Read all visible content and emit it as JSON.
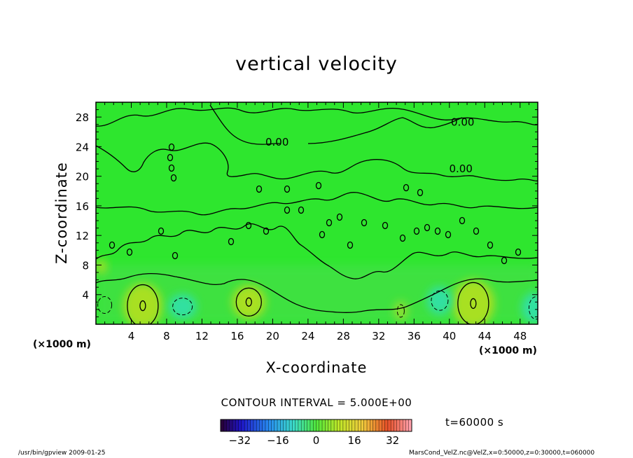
{
  "chart_data": {
    "type": "heatmap",
    "title": "vertical velocity",
    "xlabel": "X-coordinate",
    "ylabel": "Z-coordinate",
    "x_unit": "(×1000 m)",
    "y_unit": "(×1000 m)",
    "xlim": [
      0,
      50
    ],
    "ylim": [
      0,
      30
    ],
    "x_ticks": [
      4,
      8,
      12,
      16,
      20,
      24,
      28,
      32,
      36,
      40,
      44,
      48
    ],
    "y_ticks": [
      4,
      8,
      12,
      16,
      20,
      24,
      28
    ],
    "contour_labels": [
      {
        "text": "0.00",
        "x": 20.5,
        "y": 24.6
      },
      {
        "text": "0.00",
        "x": 41.5,
        "y": 27.3
      },
      {
        "text": "0.00",
        "x": 41.3,
        "y": 21.0
      }
    ],
    "local_maxima": [
      {
        "x": 5.3,
        "y": 2.5
      },
      {
        "x": 17.3,
        "y": 3.0
      },
      {
        "x": 42.7,
        "y": 2.8
      }
    ],
    "colorbar": {
      "ticks": [
        -32,
        -16,
        0,
        16,
        32
      ],
      "range": [
        -40,
        40
      ]
    },
    "contour_interval": "CONTOUR INTERVAL = 5.000E+00",
    "time_label": "t=60000 s"
  },
  "footer": {
    "left": "/usr/bin/gpview  2009-01-25",
    "right": "MarsCond_VelZ.nc@VelZ,x=0:50000,z=0:30000,t=060000"
  },
  "colors": {
    "background_field": "#2ee62e",
    "positive_center": "#a8e020",
    "negative_center": "#30e0a0"
  }
}
